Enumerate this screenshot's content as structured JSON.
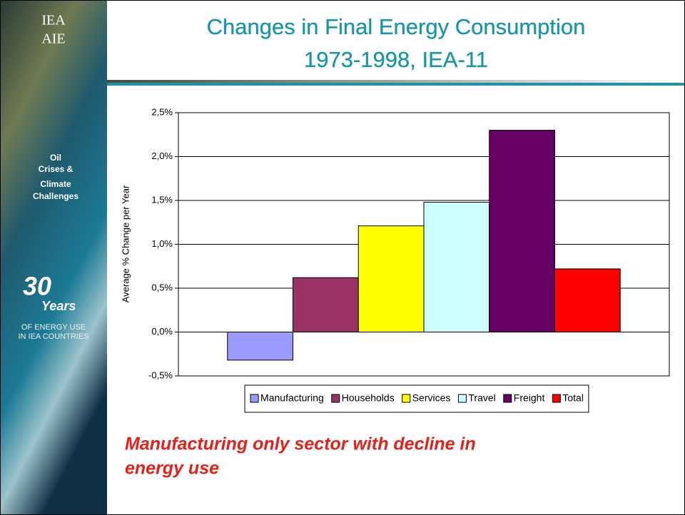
{
  "sidebar": {
    "logo": [
      "IEA",
      "AIE"
    ],
    "badge": [
      "Oil",
      "Crises &",
      "Climate",
      "Challenges"
    ],
    "years_number": "30",
    "years_word": "Years",
    "tagline": [
      "OF ENERGY USE",
      "IN IEA COUNTRIES"
    ]
  },
  "footnote": [
    "Manufacturing only sector with decline in",
    "energy use"
  ],
  "chart_data": {
    "type": "bar",
    "title": [
      "Changes in Final Energy Consumption",
      "1973-1998, IEA-11"
    ],
    "y_label": "Average % Change per Year",
    "categories": [
      null
    ],
    "series": [
      {
        "name": "Manufacturing",
        "color": "#9999ff",
        "values": [
          -0.32
        ]
      },
      {
        "name": "Households",
        "color": "#993366",
        "values": [
          0.62
        ]
      },
      {
        "name": "Services",
        "color": "#ffff00",
        "values": [
          1.21
        ]
      },
      {
        "name": "Travel",
        "color": "#ccffff",
        "values": [
          1.48
        ]
      },
      {
        "name": "Freight",
        "color": "#660066",
        "values": [
          2.3
        ]
      },
      {
        "name": "Total",
        "color": "#ff0000",
        "values": [
          0.72
        ]
      }
    ],
    "ylim": [
      -0.5,
      2.5
    ],
    "yticks": [
      {
        "value": -0.5,
        "label": "-0,5%"
      },
      {
        "value": 0,
        "label": "0,0%"
      },
      {
        "value": 0.5,
        "label": "0,5%"
      },
      {
        "value": 1,
        "label": "1,0%"
      },
      {
        "value": 1.5,
        "label": "1,5%"
      },
      {
        "value": 2,
        "label": "2,0%"
      },
      {
        "value": 2.5,
        "label": "2,5%"
      }
    ],
    "grid": true,
    "legend": "bottom"
  }
}
